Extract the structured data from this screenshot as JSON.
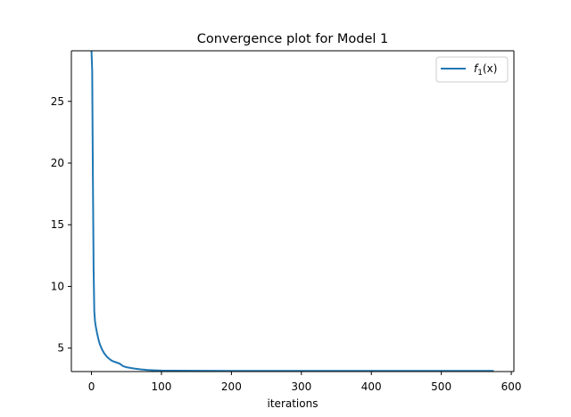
{
  "chart_data": {
    "type": "line",
    "title": "Convergence plot for Model 1",
    "xlabel": "iterations",
    "ylabel": "",
    "xlim": [
      -28.75,
      603.75
    ],
    "ylim": [
      3.1,
      29.1
    ],
    "xticks": [
      0,
      100,
      200,
      300,
      400,
      500,
      600
    ],
    "yticks": [
      5,
      10,
      15,
      20,
      25
    ],
    "grid": false,
    "legend_position": "top-right",
    "series": [
      {
        "name_main": "f",
        "name_sub": "1",
        "name_suffix": "(x)",
        "color": "#1f77b4",
        "x": [
          0,
          1,
          2,
          3,
          4,
          5,
          6,
          8,
          10,
          12,
          15,
          18,
          22,
          26,
          30,
          35,
          40,
          45,
          50,
          60,
          70,
          80,
          90,
          100,
          120,
          150,
          200,
          300,
          400,
          500,
          575
        ],
        "y": [
          29.1,
          27.5,
          19.0,
          11.5,
          8.0,
          7.2,
          6.8,
          6.2,
          5.7,
          5.3,
          4.9,
          4.6,
          4.3,
          4.1,
          3.95,
          3.85,
          3.75,
          3.55,
          3.45,
          3.35,
          3.28,
          3.23,
          3.2,
          3.18,
          3.17,
          3.16,
          3.155,
          3.15,
          3.15,
          3.15,
          3.15
        ]
      }
    ]
  }
}
